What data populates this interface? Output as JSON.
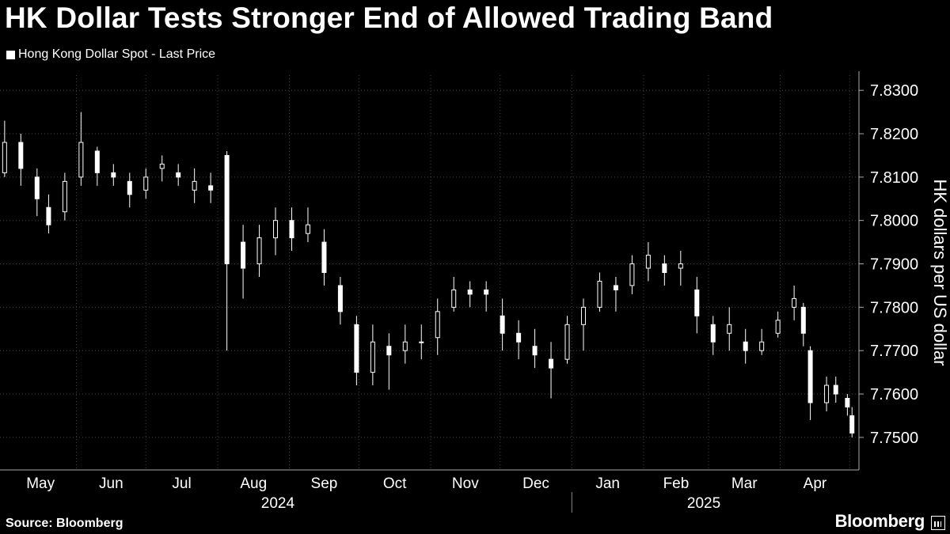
{
  "title": "HK Dollar Tests Stronger End of Allowed Trading Band",
  "source": "Source: Bloomberg",
  "brand": "Bloomberg",
  "icons": {
    "brand": "bloomberg-terminal-icon"
  },
  "colors": {
    "background": "#000000",
    "series": "#ffffff",
    "grid": "#444444"
  },
  "chart_data": {
    "type": "candlestick",
    "title": "HK Dollar Tests Stronger End of Allowed Trading Band",
    "series": [
      {
        "name": "Hong Kong Dollar Spot - Last Price"
      }
    ],
    "ylabel": "HK dollars per US dollar",
    "ylim": [
      7.7425,
      7.8335
    ],
    "y_ticks": [
      "7.8300",
      "7.8200",
      "7.8100",
      "7.8000",
      "7.7900",
      "7.7800",
      "7.7700",
      "7.7600",
      "7.7500"
    ],
    "x_months": [
      "May",
      "Jun",
      "Jul",
      "Aug",
      "Sep",
      "Oct",
      "Nov",
      "Dec",
      "Jan",
      "Feb",
      "Mar",
      "Apr"
    ],
    "x_years": [
      "2024",
      "2025"
    ],
    "grid": true,
    "legend_position": "top-left",
    "y_axis_side": "right",
    "points": [
      [
        "2024-05-01",
        7.811,
        7.823,
        7.81,
        7.818
      ],
      [
        "2024-05-08",
        7.818,
        7.82,
        7.808,
        7.812
      ],
      [
        "2024-05-15",
        7.81,
        7.812,
        7.801,
        7.805
      ],
      [
        "2024-05-20",
        7.803,
        7.806,
        7.797,
        7.799
      ],
      [
        "2024-05-27",
        7.802,
        7.811,
        7.8,
        7.809
      ],
      [
        "2024-06-03",
        7.81,
        7.825,
        7.808,
        7.818
      ],
      [
        "2024-06-10",
        7.816,
        7.817,
        7.808,
        7.811
      ],
      [
        "2024-06-17",
        7.811,
        7.813,
        7.808,
        7.81
      ],
      [
        "2024-06-24",
        7.809,
        7.811,
        7.803,
        7.806
      ],
      [
        "2024-07-01",
        7.807,
        7.812,
        7.805,
        7.81
      ],
      [
        "2024-07-08",
        7.812,
        7.815,
        7.809,
        7.813
      ],
      [
        "2024-07-15",
        7.811,
        7.813,
        7.808,
        7.81
      ],
      [
        "2024-07-22",
        7.807,
        7.812,
        7.804,
        7.809
      ],
      [
        "2024-07-29",
        7.808,
        7.811,
        7.804,
        7.807
      ],
      [
        "2024-08-05",
        7.815,
        7.816,
        7.77,
        7.79
      ],
      [
        "2024-08-12",
        7.795,
        7.799,
        7.782,
        7.789
      ],
      [
        "2024-08-19",
        7.79,
        7.799,
        7.787,
        7.796
      ],
      [
        "2024-08-26",
        7.796,
        7.803,
        7.792,
        7.8
      ],
      [
        "2024-09-02",
        7.8,
        7.803,
        7.793,
        7.796
      ],
      [
        "2024-09-09",
        7.797,
        7.803,
        7.795,
        7.799
      ],
      [
        "2024-09-16",
        7.795,
        7.798,
        7.785,
        7.788
      ],
      [
        "2024-09-23",
        7.785,
        7.787,
        7.776,
        7.779
      ],
      [
        "2024-09-30",
        7.776,
        7.778,
        7.762,
        7.765
      ],
      [
        "2024-10-07",
        7.765,
        7.776,
        7.762,
        7.772
      ],
      [
        "2024-10-14",
        7.771,
        7.774,
        7.761,
        7.769
      ],
      [
        "2024-10-21",
        7.77,
        7.776,
        7.767,
        7.772
      ],
      [
        "2024-10-28",
        7.772,
        7.776,
        7.768,
        7.772
      ],
      [
        "2024-11-04",
        7.773,
        7.782,
        7.769,
        7.779
      ],
      [
        "2024-11-11",
        7.78,
        7.787,
        7.779,
        7.784
      ],
      [
        "2024-11-18",
        7.784,
        7.786,
        7.78,
        7.783
      ],
      [
        "2024-11-25",
        7.784,
        7.786,
        7.779,
        7.783
      ],
      [
        "2024-12-02",
        7.778,
        7.782,
        7.77,
        7.774
      ],
      [
        "2024-12-09",
        7.774,
        7.777,
        7.768,
        7.772
      ],
      [
        "2024-12-16",
        7.771,
        7.775,
        7.766,
        7.769
      ],
      [
        "2024-12-23",
        7.768,
        7.772,
        7.759,
        7.766
      ],
      [
        "2024-12-30",
        7.768,
        7.778,
        7.767,
        7.776
      ],
      [
        "2025-01-06",
        7.776,
        7.782,
        7.77,
        7.78
      ],
      [
        "2025-01-13",
        7.78,
        7.788,
        7.779,
        7.786
      ],
      [
        "2025-01-20",
        7.785,
        7.787,
        7.779,
        7.784
      ],
      [
        "2025-01-27",
        7.785,
        7.792,
        7.783,
        7.79
      ],
      [
        "2025-02-03",
        7.789,
        7.795,
        7.786,
        7.792
      ],
      [
        "2025-02-10",
        7.79,
        7.792,
        7.785,
        7.788
      ],
      [
        "2025-02-17",
        7.789,
        7.793,
        7.785,
        7.79
      ],
      [
        "2025-02-24",
        7.784,
        7.787,
        7.774,
        7.778
      ],
      [
        "2025-03-03",
        7.776,
        7.778,
        7.769,
        7.772
      ],
      [
        "2025-03-10",
        7.774,
        7.78,
        7.77,
        7.776
      ],
      [
        "2025-03-17",
        7.772,
        7.775,
        7.767,
        7.77
      ],
      [
        "2025-03-24",
        7.77,
        7.775,
        7.769,
        7.772
      ],
      [
        "2025-03-31",
        7.774,
        7.779,
        7.773,
        7.777
      ],
      [
        "2025-04-07",
        7.78,
        7.785,
        7.777,
        7.782
      ],
      [
        "2025-04-11",
        7.78,
        7.781,
        7.771,
        7.774
      ],
      [
        "2025-04-14",
        7.77,
        7.771,
        7.754,
        7.758
      ],
      [
        "2025-04-21",
        7.758,
        7.764,
        7.756,
        7.762
      ],
      [
        "2025-04-25",
        7.762,
        7.764,
        7.758,
        7.76
      ],
      [
        "2025-04-30",
        7.759,
        7.76,
        7.755,
        7.757
      ],
      [
        "2025-05-02",
        7.755,
        7.757,
        7.75,
        7.751
      ]
    ]
  }
}
